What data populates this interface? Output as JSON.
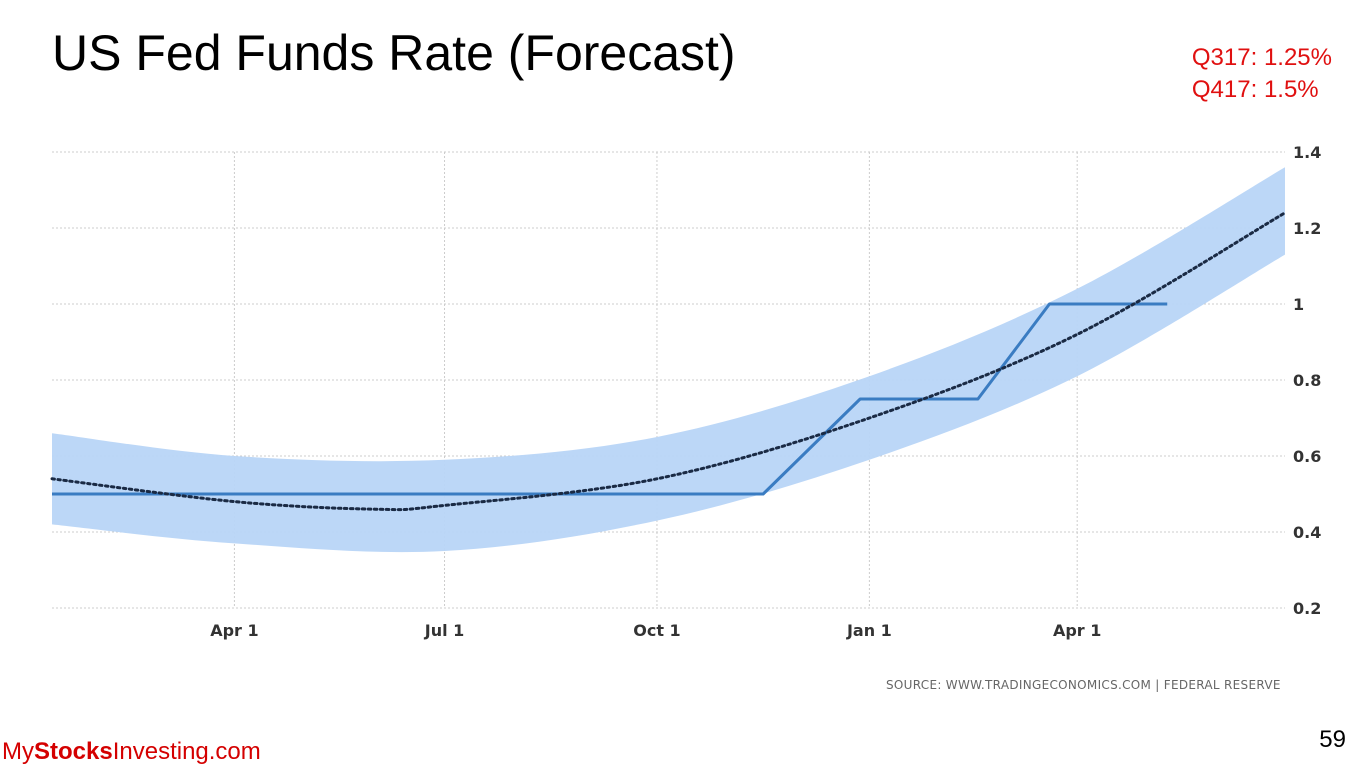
{
  "slide": {
    "title": "US Fed Funds Rate (Forecast)",
    "forecast_lines": [
      "Q317: 1.25%",
      "Q417: 1.5%"
    ],
    "source": "SOURCE: WWW.TRADINGECONOMICS.COM | FEDERAL RESERVE",
    "brand": {
      "part1": "My",
      "part2": "Stocks",
      "part3": "Investing.com"
    },
    "page_number": "59"
  },
  "colors": {
    "band": "#b8d5f7",
    "line": "#3a7cc2",
    "trend": "#1a2a44",
    "grid": "#cccccc",
    "forecast_text": "#e01010",
    "brand": "#d40000"
  },
  "chart_data": {
    "type": "line",
    "title": "US Fed Funds Rate (Forecast)",
    "xlabel": "",
    "ylabel": "",
    "ylim": [
      0.2,
      1.4
    ],
    "grid": true,
    "y_axis_side": "right",
    "y_ticks": [
      "1.4",
      "1.2",
      "1",
      "0.8",
      "0.6",
      "0.4",
      "0.2"
    ],
    "x_ticks": [
      {
        "label": "Apr 1",
        "date": "2016-04-01"
      },
      {
        "label": "Jul 1",
        "date": "2016-07-01"
      },
      {
        "label": "Oct 1",
        "date": "2016-10-01"
      },
      {
        "label": "Jan 1",
        "date": "2017-01-01"
      },
      {
        "label": "Apr 1",
        "date": "2017-04-01"
      }
    ],
    "xlim": [
      "2016-01-13",
      "2017-06-30"
    ],
    "series": [
      {
        "type": "step",
        "points": [
          {
            "x": "2016-01-13",
            "y": 0.5
          },
          {
            "x": "2016-11-16",
            "y": 0.5
          },
          {
            "x": "2016-12-28",
            "y": 0.75
          },
          {
            "x": "2017-02-17",
            "y": 0.75
          },
          {
            "x": "2017-03-20",
            "y": 1.0
          },
          {
            "x": "2017-05-10",
            "y": 1.0
          }
        ]
      },
      {
        "type": "trend",
        "style": "dotted",
        "points": [
          {
            "x": "2016-01-13",
            "y": 0.54
          },
          {
            "x": "2016-04-01",
            "y": 0.48
          },
          {
            "x": "2016-06-01",
            "y": 0.46
          },
          {
            "x": "2016-07-01",
            "y": 0.47
          },
          {
            "x": "2016-10-01",
            "y": 0.54
          },
          {
            "x": "2017-01-01",
            "y": 0.7
          },
          {
            "x": "2017-04-01",
            "y": 0.92
          },
          {
            "x": "2017-06-30",
            "y": 1.24
          }
        ]
      },
      {
        "type": "band",
        "upper": [
          {
            "x": "2016-01-13",
            "y": 0.66
          },
          {
            "x": "2016-04-01",
            "y": 0.6
          },
          {
            "x": "2016-07-01",
            "y": 0.59
          },
          {
            "x": "2016-10-01",
            "y": 0.65
          },
          {
            "x": "2017-01-01",
            "y": 0.81
          },
          {
            "x": "2017-04-01",
            "y": 1.04
          },
          {
            "x": "2017-06-30",
            "y": 1.36
          }
        ],
        "lower": [
          {
            "x": "2016-01-13",
            "y": 0.42
          },
          {
            "x": "2016-04-01",
            "y": 0.37
          },
          {
            "x": "2016-07-01",
            "y": 0.35
          },
          {
            "x": "2016-10-01",
            "y": 0.43
          },
          {
            "x": "2017-01-01",
            "y": 0.59
          },
          {
            "x": "2017-04-01",
            "y": 0.81
          },
          {
            "x": "2017-06-30",
            "y": 1.13
          }
        ]
      }
    ]
  }
}
